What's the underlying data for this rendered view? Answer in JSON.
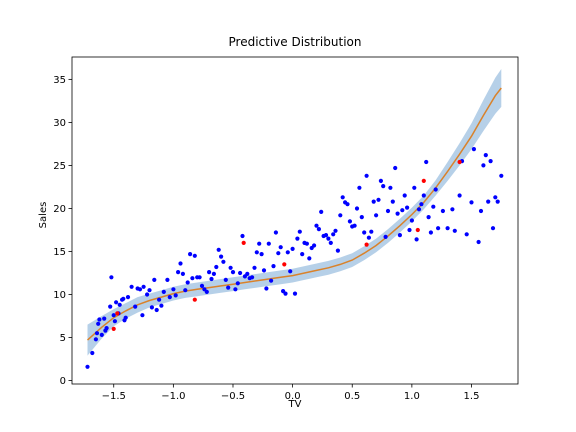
{
  "chart_data": {
    "type": "scatter",
    "title": "Predictive Distribution",
    "xlabel": "TV",
    "ylabel": "Sales",
    "xlim": [
      -1.85,
      1.89
    ],
    "ylim": [
      -0.4,
      37.6
    ],
    "x_ticks": [
      -1.5,
      -1.0,
      -0.5,
      0.0,
      0.5,
      1.0,
      1.5
    ],
    "x_tick_labels": [
      "−1.5",
      "−1.0",
      "−0.5",
      "0.0",
      "0.5",
      "1.0",
      "1.5"
    ],
    "y_ticks": [
      0,
      5,
      10,
      15,
      20,
      25,
      30,
      35
    ],
    "y_tick_labels": [
      "0",
      "5",
      "10",
      "15",
      "20",
      "25",
      "30",
      "35"
    ],
    "grid": false,
    "legend": "none",
    "colors": {
      "train_points": "#0000ff",
      "test_points": "#ff0000",
      "mean_line": "#d9822b",
      "band": "#a9c8e4"
    },
    "series": [
      {
        "kind": "scatter",
        "points": [
          [
            -1.72,
            1.6
          ],
          [
            -1.68,
            3.2
          ],
          [
            -1.65,
            4.8
          ],
          [
            -1.64,
            5.5
          ],
          [
            -1.63,
            6.6
          ],
          [
            -1.62,
            7.1
          ],
          [
            -1.6,
            5.3
          ],
          [
            -1.58,
            7.2
          ],
          [
            -1.57,
            5.8
          ],
          [
            -1.56,
            6.1
          ],
          [
            -1.53,
            8.6
          ],
          [
            -1.52,
            12.0
          ],
          [
            -1.5,
            7.6
          ],
          [
            -1.49,
            6.9
          ],
          [
            -1.48,
            9.1
          ],
          [
            -1.46,
            7.8
          ],
          [
            -1.45,
            8.8
          ],
          [
            -1.43,
            9.4
          ],
          [
            -1.42,
            9.5
          ],
          [
            -1.41,
            7.0
          ],
          [
            -1.4,
            7.3
          ],
          [
            -1.38,
            9.7
          ],
          [
            -1.35,
            10.9
          ],
          [
            -1.32,
            8.6
          ],
          [
            -1.3,
            10.7
          ],
          [
            -1.28,
            10.6
          ],
          [
            -1.26,
            7.6
          ],
          [
            -1.25,
            10.9
          ],
          [
            -1.22,
            10.0
          ],
          [
            -1.2,
            10.5
          ],
          [
            -1.18,
            8.5
          ],
          [
            -1.16,
            11.7
          ],
          [
            -1.14,
            8.2
          ],
          [
            -1.12,
            9.4
          ],
          [
            -1.1,
            8.7
          ],
          [
            -1.08,
            10.3
          ],
          [
            -1.05,
            11.7
          ],
          [
            -1.03,
            9.7
          ],
          [
            -1.0,
            10.6
          ],
          [
            -0.98,
            9.9
          ],
          [
            -0.96,
            12.6
          ],
          [
            -0.94,
            13.6
          ],
          [
            -0.92,
            12.4
          ],
          [
            -0.9,
            10.5
          ],
          [
            -0.88,
            11.4
          ],
          [
            -0.86,
            14.7
          ],
          [
            -0.84,
            11.9
          ],
          [
            -0.82,
            14.5
          ],
          [
            -0.8,
            12.0
          ],
          [
            -0.78,
            12.0
          ],
          [
            -0.76,
            11.0
          ],
          [
            -0.74,
            10.6
          ],
          [
            -0.72,
            10.3
          ],
          [
            -0.7,
            12.6
          ],
          [
            -0.68,
            11.8
          ],
          [
            -0.66,
            12.4
          ],
          [
            -0.64,
            13.2
          ],
          [
            -0.62,
            15.2
          ],
          [
            -0.6,
            14.4
          ],
          [
            -0.58,
            13.8
          ],
          [
            -0.56,
            11.7
          ],
          [
            -0.54,
            10.8
          ],
          [
            -0.52,
            13.1
          ],
          [
            -0.5,
            12.6
          ],
          [
            -0.48,
            10.6
          ],
          [
            -0.46,
            11.3
          ],
          [
            -0.44,
            12.5
          ],
          [
            -0.42,
            16.8
          ],
          [
            -0.4,
            12.1
          ],
          [
            -0.38,
            12.4
          ],
          [
            -0.36,
            11.9
          ],
          [
            -0.34,
            12.0
          ],
          [
            -0.32,
            13.1
          ],
          [
            -0.3,
            14.9
          ],
          [
            -0.28,
            15.9
          ],
          [
            -0.26,
            14.7
          ],
          [
            -0.24,
            12.8
          ],
          [
            -0.22,
            10.7
          ],
          [
            -0.2,
            15.9
          ],
          [
            -0.18,
            11.6
          ],
          [
            -0.16,
            13.3
          ],
          [
            -0.14,
            17.2
          ],
          [
            -0.12,
            14.8
          ],
          [
            -0.1,
            15.5
          ],
          [
            -0.08,
            10.4
          ],
          [
            -0.06,
            10.1
          ],
          [
            -0.04,
            14.9
          ],
          [
            -0.02,
            12.7
          ],
          [
            0.0,
            15.3
          ],
          [
            0.02,
            10.1
          ],
          [
            0.04,
            16.5
          ],
          [
            0.06,
            17.3
          ],
          [
            0.08,
            14.7
          ],
          [
            0.1,
            16.0
          ],
          [
            0.12,
            15.9
          ],
          [
            0.14,
            14.2
          ],
          [
            0.16,
            15.4
          ],
          [
            0.18,
            15.7
          ],
          [
            0.2,
            18.0
          ],
          [
            0.22,
            17.6
          ],
          [
            0.24,
            19.6
          ],
          [
            0.26,
            16.8
          ],
          [
            0.28,
            16.9
          ],
          [
            0.3,
            16.5
          ],
          [
            0.32,
            16.0
          ],
          [
            0.34,
            17.0
          ],
          [
            0.36,
            17.4
          ],
          [
            0.38,
            15.1
          ],
          [
            0.4,
            19.2
          ],
          [
            0.42,
            21.3
          ],
          [
            0.44,
            20.7
          ],
          [
            0.46,
            20.5
          ],
          [
            0.48,
            18.5
          ],
          [
            0.5,
            17.9
          ],
          [
            0.52,
            18.0
          ],
          [
            0.54,
            20.0
          ],
          [
            0.56,
            22.4
          ],
          [
            0.58,
            19.0
          ],
          [
            0.6,
            17.2
          ],
          [
            0.62,
            23.8
          ],
          [
            0.64,
            16.6
          ],
          [
            0.66,
            17.3
          ],
          [
            0.68,
            20.8
          ],
          [
            0.7,
            19.2
          ],
          [
            0.72,
            21.0
          ],
          [
            0.74,
            23.2
          ],
          [
            0.76,
            22.6
          ],
          [
            0.78,
            16.7
          ],
          [
            0.8,
            19.7
          ],
          [
            0.82,
            22.4
          ],
          [
            0.84,
            20.8
          ],
          [
            0.86,
            24.7
          ],
          [
            0.88,
            19.4
          ],
          [
            0.9,
            16.9
          ],
          [
            0.92,
            19.8
          ],
          [
            0.94,
            21.5
          ],
          [
            0.96,
            20.1
          ],
          [
            0.98,
            17.5
          ],
          [
            1.0,
            18.6
          ],
          [
            1.02,
            22.4
          ],
          [
            1.04,
            16.4
          ],
          [
            1.06,
            19.9
          ],
          [
            1.08,
            20.5
          ],
          [
            1.1,
            21.5
          ],
          [
            1.12,
            25.4
          ],
          [
            1.14,
            19.0
          ],
          [
            1.16,
            17.2
          ],
          [
            1.18,
            20.2
          ],
          [
            1.2,
            22.2
          ],
          [
            1.22,
            17.7
          ],
          [
            1.26,
            19.7
          ],
          [
            1.3,
            17.7
          ],
          [
            1.34,
            19.9
          ],
          [
            1.36,
            17.4
          ],
          [
            1.4,
            21.5
          ],
          [
            1.42,
            25.5
          ],
          [
            1.46,
            17.0
          ],
          [
            1.5,
            20.7
          ],
          [
            1.52,
            26.9
          ],
          [
            1.56,
            16.1
          ],
          [
            1.58,
            19.7
          ],
          [
            1.6,
            25.0
          ],
          [
            1.62,
            26.2
          ],
          [
            1.64,
            20.8
          ],
          [
            1.66,
            25.5
          ],
          [
            1.68,
            17.7
          ],
          [
            1.7,
            21.3
          ],
          [
            1.72,
            20.8
          ],
          [
            1.75,
            23.8
          ]
        ]
      },
      {
        "kind": "scatter-test",
        "points": [
          [
            -1.5,
            6.0
          ],
          [
            -1.47,
            7.8
          ],
          [
            -0.82,
            9.4
          ],
          [
            -0.41,
            16.0
          ],
          [
            -0.07,
            13.5
          ],
          [
            0.62,
            15.8
          ],
          [
            1.1,
            23.2
          ],
          [
            1.4,
            25.4
          ],
          [
            1.05,
            17.5
          ]
        ]
      },
      {
        "kind": "mean-line",
        "points": [
          [
            -1.72,
            4.7
          ],
          [
            -1.6,
            6.2
          ],
          [
            -1.5,
            7.3
          ],
          [
            -1.4,
            8.1
          ],
          [
            -1.3,
            8.8
          ],
          [
            -1.2,
            9.3
          ],
          [
            -1.1,
            9.7
          ],
          [
            -1.0,
            10.1
          ],
          [
            -0.9,
            10.4
          ],
          [
            -0.8,
            10.6
          ],
          [
            -0.7,
            10.8
          ],
          [
            -0.6,
            11.0
          ],
          [
            -0.5,
            11.2
          ],
          [
            -0.4,
            11.4
          ],
          [
            -0.3,
            11.6
          ],
          [
            -0.2,
            11.8
          ],
          [
            -0.1,
            12.0
          ],
          [
            0.0,
            12.2
          ],
          [
            0.1,
            12.5
          ],
          [
            0.2,
            12.8
          ],
          [
            0.3,
            13.1
          ],
          [
            0.4,
            13.5
          ],
          [
            0.5,
            14.0
          ],
          [
            0.6,
            14.8
          ],
          [
            0.7,
            15.7
          ],
          [
            0.8,
            16.8
          ],
          [
            0.9,
            18.0
          ],
          [
            1.0,
            19.3
          ],
          [
            1.1,
            20.7
          ],
          [
            1.2,
            22.4
          ],
          [
            1.3,
            24.3
          ],
          [
            1.4,
            26.3
          ],
          [
            1.5,
            28.4
          ],
          [
            1.6,
            30.8
          ],
          [
            1.7,
            33.1
          ],
          [
            1.75,
            34.0
          ]
        ]
      },
      {
        "kind": "band",
        "lower": [
          2.9,
          4.9,
          6.3,
          7.2,
          7.9,
          8.5,
          8.9,
          9.3,
          9.6,
          9.8,
          10.0,
          10.2,
          10.4,
          10.6,
          10.8,
          11.0,
          11.2,
          11.4,
          11.7,
          12.0,
          12.3,
          12.7,
          13.2,
          14.0,
          14.9,
          16.0,
          17.2,
          18.5,
          19.9,
          21.5,
          23.2,
          25.0,
          26.9,
          29.0,
          31.0,
          31.8
        ],
        "upper": [
          6.5,
          7.5,
          8.3,
          9.0,
          9.7,
          10.1,
          10.5,
          10.9,
          11.2,
          11.4,
          11.6,
          11.8,
          12.0,
          12.2,
          12.4,
          12.6,
          12.8,
          13.0,
          13.3,
          13.6,
          13.9,
          14.3,
          14.8,
          15.6,
          16.5,
          17.6,
          18.8,
          20.1,
          21.5,
          23.3,
          25.4,
          27.6,
          29.9,
          32.6,
          35.2,
          36.2
        ]
      }
    ]
  }
}
